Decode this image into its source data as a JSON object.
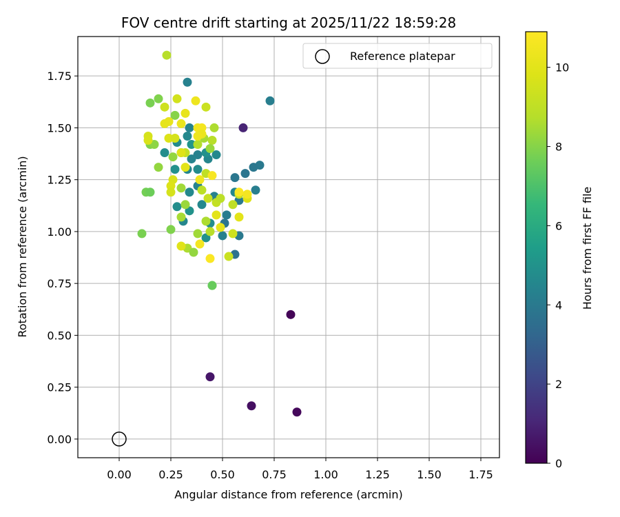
{
  "chart_data": {
    "type": "scatter",
    "title": "FOV centre drift starting at 2025/11/22 18:59:28",
    "xlabel": "Angular distance from reference (arcmin)",
    "ylabel": "Rotation from reference (arcmin)",
    "xlim": [
      -0.2,
      1.84
    ],
    "ylim": [
      -0.09,
      1.94
    ],
    "xticks": [
      0.0,
      0.25,
      0.5,
      0.75,
      1.0,
      1.25,
      1.5,
      1.75
    ],
    "yticks": [
      0.0,
      0.25,
      0.5,
      0.75,
      1.0,
      1.25,
      1.5,
      1.75
    ],
    "xtick_labels": [
      "0.00",
      "0.25",
      "0.50",
      "0.75",
      "1.00",
      "1.25",
      "1.50",
      "1.75"
    ],
    "ytick_labels": [
      "0.00",
      "0.25",
      "0.50",
      "0.75",
      "1.00",
      "1.25",
      "1.50",
      "1.75"
    ],
    "grid": true,
    "legend": {
      "position": "top-right",
      "entries": [
        "Reference platepar"
      ]
    },
    "colorbar": {
      "label": "Hours from first FF file",
      "range": [
        0,
        10.9
      ],
      "ticks": [
        0,
        2,
        4,
        6,
        8,
        10
      ],
      "tick_labels": [
        "0",
        "2",
        "4",
        "6",
        "8",
        "10"
      ],
      "colormap": "viridis"
    },
    "reference_point": {
      "name": "Reference platepar",
      "x": 0.0,
      "y": 0.0
    },
    "points": [
      {
        "x": 0.83,
        "y": 0.6,
        "c": 0.1
      },
      {
        "x": 0.86,
        "y": 0.13,
        "c": 0.2
      },
      {
        "x": 0.64,
        "y": 0.16,
        "c": 0.4
      },
      {
        "x": 0.44,
        "y": 0.3,
        "c": 0.6
      },
      {
        "x": 0.6,
        "y": 1.5,
        "c": 1.0
      },
      {
        "x": 0.73,
        "y": 1.63,
        "c": 4.2
      },
      {
        "x": 0.33,
        "y": 1.72,
        "c": 4.3
      },
      {
        "x": 0.68,
        "y": 1.32,
        "c": 4.0
      },
      {
        "x": 0.65,
        "y": 1.31,
        "c": 3.9
      },
      {
        "x": 0.61,
        "y": 1.28,
        "c": 3.8
      },
      {
        "x": 0.56,
        "y": 1.26,
        "c": 3.9
      },
      {
        "x": 0.56,
        "y": 1.19,
        "c": 4.5
      },
      {
        "x": 0.66,
        "y": 1.2,
        "c": 4.2
      },
      {
        "x": 0.58,
        "y": 1.15,
        "c": 4.0
      },
      {
        "x": 0.52,
        "y": 1.08,
        "c": 4.1
      },
      {
        "x": 0.51,
        "y": 1.04,
        "c": 3.8
      },
      {
        "x": 0.5,
        "y": 0.98,
        "c": 4.3
      },
      {
        "x": 0.58,
        "y": 0.98,
        "c": 4.0
      },
      {
        "x": 0.56,
        "y": 0.89,
        "c": 3.7
      },
      {
        "x": 0.47,
        "y": 1.37,
        "c": 4.6
      },
      {
        "x": 0.43,
        "y": 1.35,
        "c": 4.5
      },
      {
        "x": 0.38,
        "y": 1.37,
        "c": 4.3
      },
      {
        "x": 0.35,
        "y": 1.35,
        "c": 4.4
      },
      {
        "x": 0.33,
        "y": 1.46,
        "c": 4.6
      },
      {
        "x": 0.34,
        "y": 1.5,
        "c": 4.4
      },
      {
        "x": 0.28,
        "y": 1.43,
        "c": 4.7
      },
      {
        "x": 0.22,
        "y": 1.38,
        "c": 4.8
      },
      {
        "x": 0.27,
        "y": 1.3,
        "c": 4.9
      },
      {
        "x": 0.33,
        "y": 1.3,
        "c": 4.5
      },
      {
        "x": 0.38,
        "y": 1.3,
        "c": 4.7
      },
      {
        "x": 0.38,
        "y": 1.22,
        "c": 4.4
      },
      {
        "x": 0.34,
        "y": 1.19,
        "c": 4.6
      },
      {
        "x": 0.28,
        "y": 1.12,
        "c": 4.8
      },
      {
        "x": 0.31,
        "y": 1.05,
        "c": 4.5
      },
      {
        "x": 0.34,
        "y": 1.1,
        "c": 5.0
      },
      {
        "x": 0.4,
        "y": 1.13,
        "c": 4.6
      },
      {
        "x": 0.46,
        "y": 1.17,
        "c": 4.3
      },
      {
        "x": 0.44,
        "y": 1.04,
        "c": 4.8
      },
      {
        "x": 0.42,
        "y": 0.97,
        "c": 5.0
      },
      {
        "x": 0.3,
        "y": 1.38,
        "c": 5.2
      },
      {
        "x": 0.35,
        "y": 1.42,
        "c": 5.1
      },
      {
        "x": 0.42,
        "y": 1.38,
        "c": 4.9
      },
      {
        "x": 0.45,
        "y": 0.74,
        "c": 7.6
      },
      {
        "x": 0.45,
        "y": 0.74,
        "c": 7.5
      },
      {
        "x": 0.11,
        "y": 0.99,
        "c": 7.8
      },
      {
        "x": 0.25,
        "y": 1.01,
        "c": 7.9
      },
      {
        "x": 0.13,
        "y": 1.19,
        "c": 7.7
      },
      {
        "x": 0.15,
        "y": 1.19,
        "c": 7.6
      },
      {
        "x": 0.19,
        "y": 1.31,
        "c": 8.2
      },
      {
        "x": 0.15,
        "y": 1.42,
        "c": 7.9
      },
      {
        "x": 0.17,
        "y": 1.42,
        "c": 8.1
      },
      {
        "x": 0.15,
        "y": 1.62,
        "c": 7.8
      },
      {
        "x": 0.19,
        "y": 1.64,
        "c": 7.9
      },
      {
        "x": 0.27,
        "y": 1.56,
        "c": 8.0
      },
      {
        "x": 0.26,
        "y": 1.36,
        "c": 8.2
      },
      {
        "x": 0.3,
        "y": 1.21,
        "c": 8.4
      },
      {
        "x": 0.32,
        "y": 1.13,
        "c": 8.3
      },
      {
        "x": 0.3,
        "y": 1.07,
        "c": 8.5
      },
      {
        "x": 0.33,
        "y": 0.92,
        "c": 8.6
      },
      {
        "x": 0.36,
        "y": 0.9,
        "c": 8.2
      },
      {
        "x": 0.38,
        "y": 0.99,
        "c": 8.4
      },
      {
        "x": 0.42,
        "y": 1.05,
        "c": 8.6
      },
      {
        "x": 0.44,
        "y": 1.0,
        "c": 8.8
      },
      {
        "x": 0.46,
        "y": 1.5,
        "c": 8.6
      },
      {
        "x": 0.45,
        "y": 1.44,
        "c": 8.8
      },
      {
        "x": 0.44,
        "y": 1.4,
        "c": 8.3
      },
      {
        "x": 0.41,
        "y": 1.45,
        "c": 8.5
      },
      {
        "x": 0.38,
        "y": 1.42,
        "c": 8.7
      },
      {
        "x": 0.4,
        "y": 1.2,
        "c": 8.9
      },
      {
        "x": 0.42,
        "y": 1.28,
        "c": 9.0
      },
      {
        "x": 0.43,
        "y": 1.16,
        "c": 9.2
      },
      {
        "x": 0.47,
        "y": 1.14,
        "c": 9.1
      },
      {
        "x": 0.49,
        "y": 1.16,
        "c": 8.9
      },
      {
        "x": 0.55,
        "y": 1.13,
        "c": 9.0
      },
      {
        "x": 0.58,
        "y": 1.18,
        "c": 9.2
      },
      {
        "x": 0.55,
        "y": 0.99,
        "c": 9.4
      },
      {
        "x": 0.53,
        "y": 0.88,
        "c": 9.3
      },
      {
        "x": 0.32,
        "y": 1.38,
        "c": 9.1
      },
      {
        "x": 0.23,
        "y": 1.85,
        "c": 8.8
      },
      {
        "x": 0.22,
        "y": 1.6,
        "c": 9.4
      },
      {
        "x": 0.28,
        "y": 1.64,
        "c": 9.5
      },
      {
        "x": 0.42,
        "y": 1.6,
        "c": 9.3
      },
      {
        "x": 0.14,
        "y": 1.46,
        "c": 9.6
      },
      {
        "x": 0.14,
        "y": 1.44,
        "c": 9.7
      },
      {
        "x": 0.24,
        "y": 1.45,
        "c": 9.8
      },
      {
        "x": 0.27,
        "y": 1.45,
        "c": 9.6
      },
      {
        "x": 0.3,
        "y": 1.38,
        "c": 9.9
      },
      {
        "x": 0.26,
        "y": 1.25,
        "c": 9.7
      },
      {
        "x": 0.25,
        "y": 1.22,
        "c": 9.8
      },
      {
        "x": 0.25,
        "y": 1.19,
        "c": 9.6
      },
      {
        "x": 0.32,
        "y": 1.31,
        "c": 10.0
      },
      {
        "x": 0.3,
        "y": 0.93,
        "c": 9.9
      },
      {
        "x": 0.58,
        "y": 1.07,
        "c": 10.0
      },
      {
        "x": 0.62,
        "y": 1.16,
        "c": 9.8
      },
      {
        "x": 0.49,
        "y": 1.02,
        "c": 10.1
      },
      {
        "x": 0.47,
        "y": 1.08,
        "c": 10.0
      },
      {
        "x": 0.24,
        "y": 1.53,
        "c": 10.2
      },
      {
        "x": 0.22,
        "y": 1.52,
        "c": 10.1
      },
      {
        "x": 0.3,
        "y": 1.52,
        "c": 10.3
      },
      {
        "x": 0.32,
        "y": 1.57,
        "c": 10.2
      },
      {
        "x": 0.37,
        "y": 1.63,
        "c": 10.4
      },
      {
        "x": 0.38,
        "y": 1.5,
        "c": 10.5
      },
      {
        "x": 0.4,
        "y": 1.5,
        "c": 10.6
      },
      {
        "x": 0.4,
        "y": 1.47,
        "c": 10.3
      },
      {
        "x": 0.38,
        "y": 1.46,
        "c": 10.4
      },
      {
        "x": 0.39,
        "y": 1.25,
        "c": 10.5
      },
      {
        "x": 0.45,
        "y": 1.27,
        "c": 10.7
      },
      {
        "x": 0.39,
        "y": 0.94,
        "c": 10.6
      },
      {
        "x": 0.44,
        "y": 0.87,
        "c": 10.8
      },
      {
        "x": 0.62,
        "y": 1.18,
        "c": 10.6
      },
      {
        "x": 0.58,
        "y": 1.19,
        "c": 10.8
      }
    ]
  }
}
